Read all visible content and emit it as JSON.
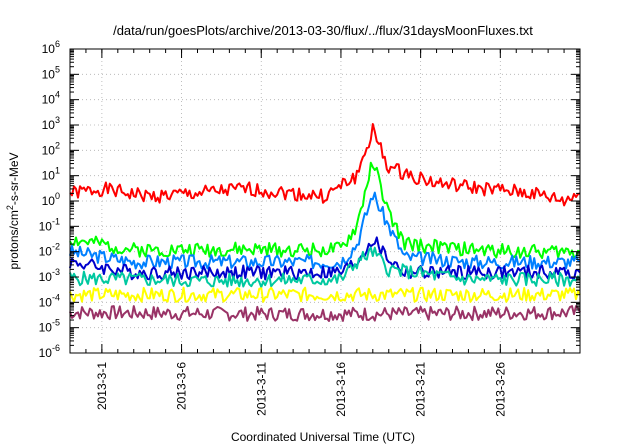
{
  "chart_data": {
    "type": "line",
    "title": "/data/run/goesPlots/archive/2013-03-30/flux/../flux/31daysMoonFluxes.txt",
    "xlabel": "Coordinated Universal Time (UTC)",
    "ylabel": "protons/cm²-s-sr-MeV",
    "ylabel_parts": {
      "pre": "protons/cm",
      "sup": "2",
      "post": "-s-sr-MeV"
    },
    "y_scale": "log",
    "ylim": [
      1e-06,
      1000000
    ],
    "xlim": [
      "2013-02-27",
      "2013-03-31"
    ],
    "x_ticks": [
      "2013-3-1",
      "2013-3-6",
      "2013-3-11",
      "2013-3-16",
      "2013-3-21",
      "2013-3-26"
    ],
    "y_ticks": [
      {
        "value": 1e-06,
        "base": "10",
        "exp": "-6"
      },
      {
        "value": 1e-05,
        "base": "10",
        "exp": "-5"
      },
      {
        "value": 0.0001,
        "base": "10",
        "exp": "-4"
      },
      {
        "value": 0.001,
        "base": "10",
        "exp": "-3"
      },
      {
        "value": 0.01,
        "base": "10",
        "exp": "-2"
      },
      {
        "value": 0.1,
        "base": "10",
        "exp": "-1"
      },
      {
        "value": 1,
        "base": "10",
        "exp": "0"
      },
      {
        "value": 10,
        "base": "10",
        "exp": "1"
      },
      {
        "value": 100,
        "base": "10",
        "exp": "2"
      },
      {
        "value": 1000,
        "base": "10",
        "exp": "3"
      },
      {
        "value": 10000,
        "base": "10",
        "exp": "4"
      },
      {
        "value": 100000,
        "base": "10",
        "exp": "5"
      },
      {
        "value": 1000000,
        "base": "10",
        "exp": "6"
      }
    ],
    "grid": true,
    "series": [
      {
        "color": "#ff0000",
        "x": [
          "2013-02-27",
          "2013-03-01",
          "2013-03-04",
          "2013-03-07",
          "2013-03-10",
          "2013-03-13",
          "2013-03-15",
          "2013-03-17",
          "2013-03-18",
          "2013-03-19",
          "2013-03-22",
          "2013-03-25",
          "2013-03-28",
          "2013-03-30",
          "2013-03-31"
        ],
        "y": [
          2,
          3,
          1.5,
          2,
          3,
          2,
          1.5,
          10,
          600,
          20,
          5,
          3,
          2,
          1,
          2
        ]
      },
      {
        "color": "#00ff00",
        "x": [
          "2013-02-27",
          "2013-03-03",
          "2013-03-08",
          "2013-03-12",
          "2013-03-16",
          "2013-03-17",
          "2013-03-18",
          "2013-03-19",
          "2013-03-20",
          "2013-03-24",
          "2013-03-28",
          "2013-03-31"
        ],
        "y": [
          0.03,
          0.012,
          0.012,
          0.012,
          0.012,
          0.1,
          40,
          0.3,
          0.02,
          0.012,
          0.01,
          0.01
        ]
      },
      {
        "color": "#0080ff",
        "x": [
          "2013-02-27",
          "2013-03-03",
          "2013-03-08",
          "2013-03-12",
          "2013-03-16",
          "2013-03-17",
          "2013-03-18",
          "2013-03-19",
          "2013-03-20",
          "2013-03-24",
          "2013-03-28",
          "2013-03-31"
        ],
        "y": [
          0.01,
          0.004,
          0.004,
          0.004,
          0.004,
          0.02,
          2,
          0.1,
          0.006,
          0.004,
          0.004,
          0.004
        ]
      },
      {
        "color": "#0000cc",
        "x": [
          "2013-02-27",
          "2013-03-03",
          "2013-03-08",
          "2013-03-12",
          "2013-03-16",
          "2013-03-17",
          "2013-03-18",
          "2013-03-19",
          "2013-03-20",
          "2013-03-24",
          "2013-03-28",
          "2013-03-31"
        ],
        "y": [
          0.004,
          0.0015,
          0.0015,
          0.0015,
          0.0015,
          0.004,
          0.03,
          0.005,
          0.0015,
          0.0015,
          0.0015,
          0.0015
        ]
      },
      {
        "color": "#00c8a0",
        "x": [
          "2013-02-27",
          "2013-03-08",
          "2013-03-16",
          "2013-03-17",
          "2013-03-18",
          "2013-03-19",
          "2013-03-24",
          "2013-03-31"
        ],
        "y": [
          0.0009,
          0.0007,
          0.0008,
          0.004,
          0.01,
          0.002,
          0.0008,
          0.0008
        ]
      },
      {
        "color": "#ffff00",
        "x": [
          "2013-02-27",
          "2013-03-10",
          "2013-03-20",
          "2013-03-31"
        ],
        "y": [
          0.0002,
          0.0002,
          0.0002,
          0.0002
        ]
      },
      {
        "color": "#993366",
        "x": [
          "2013-02-27",
          "2013-03-10",
          "2013-03-20",
          "2013-03-31"
        ],
        "y": [
          4e-05,
          3.5e-05,
          3.5e-05,
          4e-05
        ]
      }
    ]
  }
}
